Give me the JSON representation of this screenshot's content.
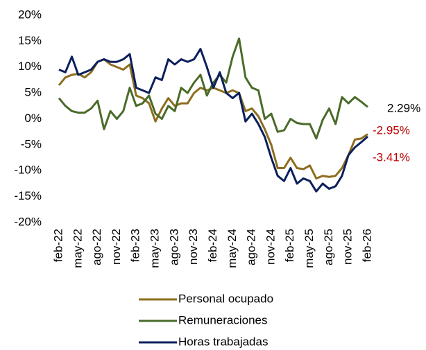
{
  "chart_data": {
    "type": "line",
    "categories": [
      "feb-22",
      null,
      null,
      "may-22",
      null,
      null,
      "ago-22",
      null,
      null,
      "nov-22",
      null,
      null,
      "feb-23",
      null,
      null,
      "may-23",
      null,
      null,
      "ago-23",
      null,
      null,
      "nov-23",
      null,
      null,
      "feb-24",
      null,
      null,
      "may-24",
      null,
      null,
      "ago-24",
      null,
      null,
      "nov-24",
      null,
      null,
      "feb-25",
      null,
      null,
      "may-25",
      null,
      null,
      "ago-25",
      null,
      null,
      "nov-25",
      null,
      null,
      "feb-26"
    ],
    "series": [
      {
        "name": "Personal ocupado",
        "color": "#8c6d1f",
        "end_label": "-2.95%",
        "end_label_color": "#c00000",
        "values": [
          6.5,
          8,
          8.5,
          8.7,
          8,
          9,
          11,
          11.5,
          10.5,
          10,
          9.5,
          10.5,
          4.5,
          4,
          3,
          -0.5,
          2,
          4,
          2.5,
          3,
          3,
          5,
          6,
          5.5,
          6,
          5.5,
          5,
          5.5,
          5,
          1.5,
          2,
          0.5,
          -2,
          -5,
          -9.5,
          -9.5,
          -7.5,
          -9.5,
          -9.7,
          -9,
          -11.5,
          -11,
          -11.2,
          -11,
          -9.5,
          -7,
          -4,
          -3.8,
          -2.95
        ]
      },
      {
        "name": "Remuneraciones",
        "color": "#4a6b2a",
        "end_label": "2.29%",
        "end_label_color": "#000000",
        "values": [
          4,
          2.5,
          1.5,
          1.2,
          1.2,
          2,
          3.5,
          -2,
          1.5,
          0,
          1.5,
          6,
          2.5,
          3,
          4.5,
          1,
          0,
          2.5,
          1.5,
          6,
          5,
          7,
          8.5,
          4.5,
          7,
          8.5,
          7,
          12,
          15.5,
          8,
          6,
          5.5,
          0,
          1,
          -2.5,
          -2.2,
          0,
          -0.8,
          -1,
          -1,
          -3.8,
          -0.2,
          2,
          -1,
          4.2,
          3,
          4.2,
          3.3,
          2.29
        ]
      },
      {
        "name": "Horas trabajadas",
        "color": "#0b1f5c",
        "end_label": "-3.41%",
        "end_label_color": "#c00000",
        "values": [
          9.5,
          9,
          12,
          8.5,
          9,
          9.5,
          11,
          11.5,
          11,
          11,
          11.5,
          12.5,
          6,
          5.5,
          5,
          8,
          7.5,
          11.5,
          10.5,
          11.5,
          11,
          11.5,
          13.5,
          10,
          6,
          9,
          5,
          4,
          5,
          -0.5,
          1,
          -1,
          -3.5,
          -7.5,
          -11,
          -12,
          -9.5,
          -12.5,
          -11.5,
          -12,
          -14,
          -12.5,
          -13.5,
          -13,
          -11,
          -7,
          -5.5,
          -4.5,
          -3.41
        ]
      }
    ],
    "ylim": [
      -20,
      20
    ],
    "yticks": [
      {
        "value": -20,
        "label": "-20%"
      },
      {
        "value": -15,
        "label": "-15%"
      },
      {
        "value": -10,
        "label": "-10%"
      },
      {
        "value": -5,
        "label": "-5%"
      },
      {
        "value": 0,
        "label": "0%"
      },
      {
        "value": 5,
        "label": "5%"
      },
      {
        "value": 10,
        "label": "10%"
      },
      {
        "value": 15,
        "label": "15%"
      },
      {
        "value": 20,
        "label": "20%"
      }
    ],
    "grid": false,
    "legend": "bottom"
  }
}
